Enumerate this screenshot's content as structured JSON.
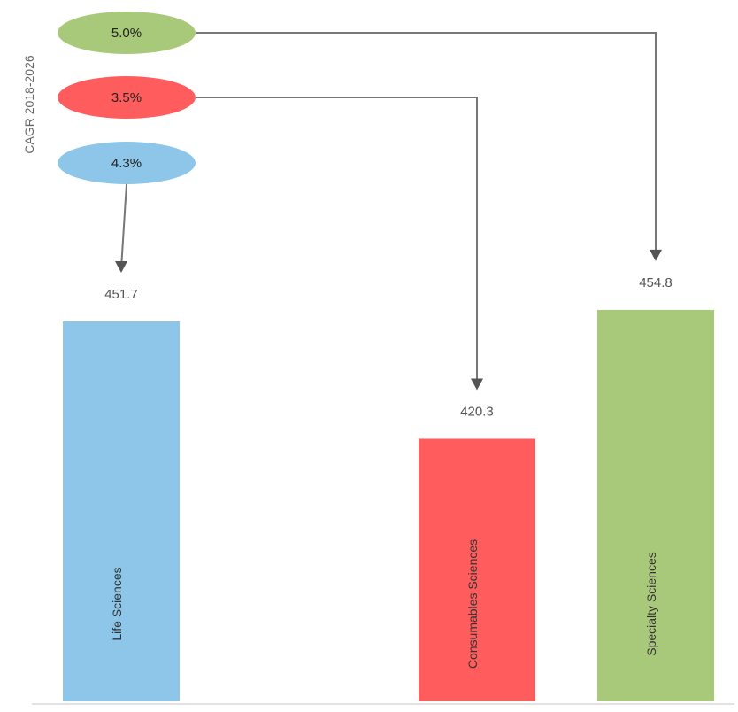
{
  "chart_data": {
    "type": "bar",
    "categories": [
      "Life Sciences",
      "Consumables Sciences",
      "Specialty Sciences"
    ],
    "values": [
      451.7,
      420.3,
      454.8
    ],
    "colors": [
      "#8dc6e8",
      "#ff5d5d",
      "#a9c97a"
    ],
    "cagr_label": "CAGR 2018-2026",
    "cagr_values": [
      "4.3%",
      "3.5%",
      "5.0%"
    ],
    "value_labels": [
      "451.7",
      "420.3",
      "454.8"
    ],
    "ylim": [
      350,
      460
    ],
    "grid": false,
    "legend": "none"
  }
}
